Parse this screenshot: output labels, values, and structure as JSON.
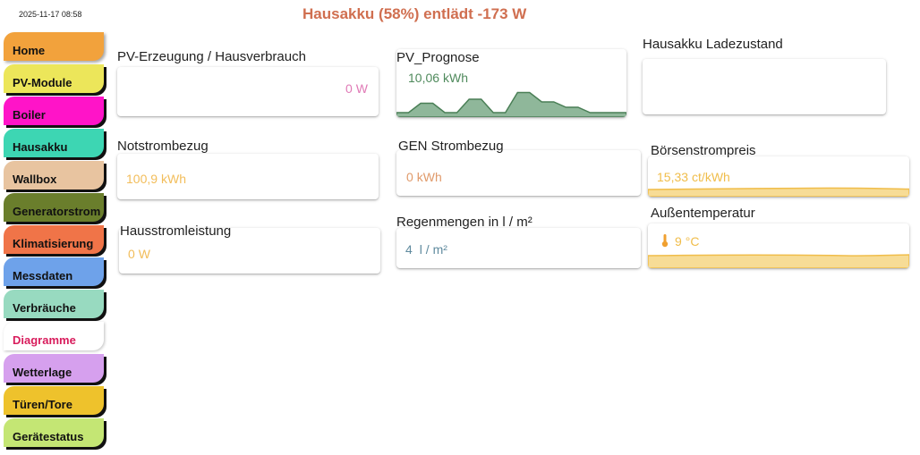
{
  "header": {
    "datetime": "2025-11-17 08:58",
    "status": "Hausakku (58%) entlädt -173 W"
  },
  "nav": [
    {
      "label": "Home",
      "color": "#f2a23c"
    },
    {
      "label": "PV-Module",
      "color": "#ece65a"
    },
    {
      "label": "Boiler",
      "color": "#ff14c8"
    },
    {
      "label": "Hausakku",
      "color": "#3dd6b3"
    },
    {
      "label": "Wallbox",
      "color": "#e8c4a0"
    },
    {
      "label": "Generatorstrom",
      "color": "#6a7e2c"
    },
    {
      "label": "Klimatisierung",
      "color": "#f07448"
    },
    {
      "label": "Messdaten",
      "color": "#6ea2ea"
    },
    {
      "label": "Verbräuche",
      "color": "#98dac0"
    },
    {
      "label": "Diagramme",
      "color": "#ffffff",
      "text_color": "#d81c5c"
    },
    {
      "label": "Wetterlage",
      "color": "#d6a0ee"
    },
    {
      "label": "Türen/Tore",
      "color": "#eec22c"
    },
    {
      "label": "Gerätestatus",
      "color": "#c4e674"
    }
  ],
  "cards": {
    "pv_erzeugung": {
      "title": "PV-Erzeugung / Hausverbrauch",
      "value": "0",
      "unit": "W",
      "color": "#e07ab6"
    },
    "pv_prognose": {
      "title": "PV_Prognose",
      "value": "10,06",
      "unit": "kWh",
      "color": "#4f8a5c",
      "spark_fill": "#8fb79a",
      "spark_line": "#4a7f56",
      "spark_level": [
        0.1,
        0.1,
        0.45,
        0.45,
        0.1,
        0.1,
        0.6,
        0.6,
        0.1,
        0.1,
        0.85,
        0.85,
        0.5,
        0.5,
        0.3,
        0.3,
        0.1,
        0.1,
        0.1,
        0.1
      ]
    },
    "hausakku_ladezustand": {
      "title": "Hausakku Ladezustand"
    },
    "notstrombezug": {
      "title": "Notstrombezug",
      "value": "100,9",
      "unit": "kWh",
      "color": "#f2bd5a"
    },
    "gen_strombezug": {
      "title": "GEN Strombezug",
      "value": "0",
      "unit": "kWh",
      "color": "#e09a6a"
    },
    "boersenstrompreis": {
      "title": "Börsenstrompreis",
      "value": "15,33",
      "unit": "ct/kWh",
      "color": "#f0bd4a",
      "spark_fill": "#f7dc96",
      "spark_line": "#f0bd4a"
    },
    "hausstromleistung": {
      "title": "Hausstromleistung",
      "value": "0",
      "unit": "W",
      "color": "#f2bd5a"
    },
    "regenmengen": {
      "title": "Regenmengen in l / m²",
      "value": "4",
      "unit": "l / m²",
      "color": "#5f8a9e"
    },
    "aussentemperatur": {
      "title": "Außentemperatur",
      "value": "9",
      "unit": "°C",
      "color": "#f0bd4a",
      "icon": "thermometer-icon",
      "spark_fill": "#f7dc96",
      "spark_line": "#f0bd4a"
    }
  }
}
